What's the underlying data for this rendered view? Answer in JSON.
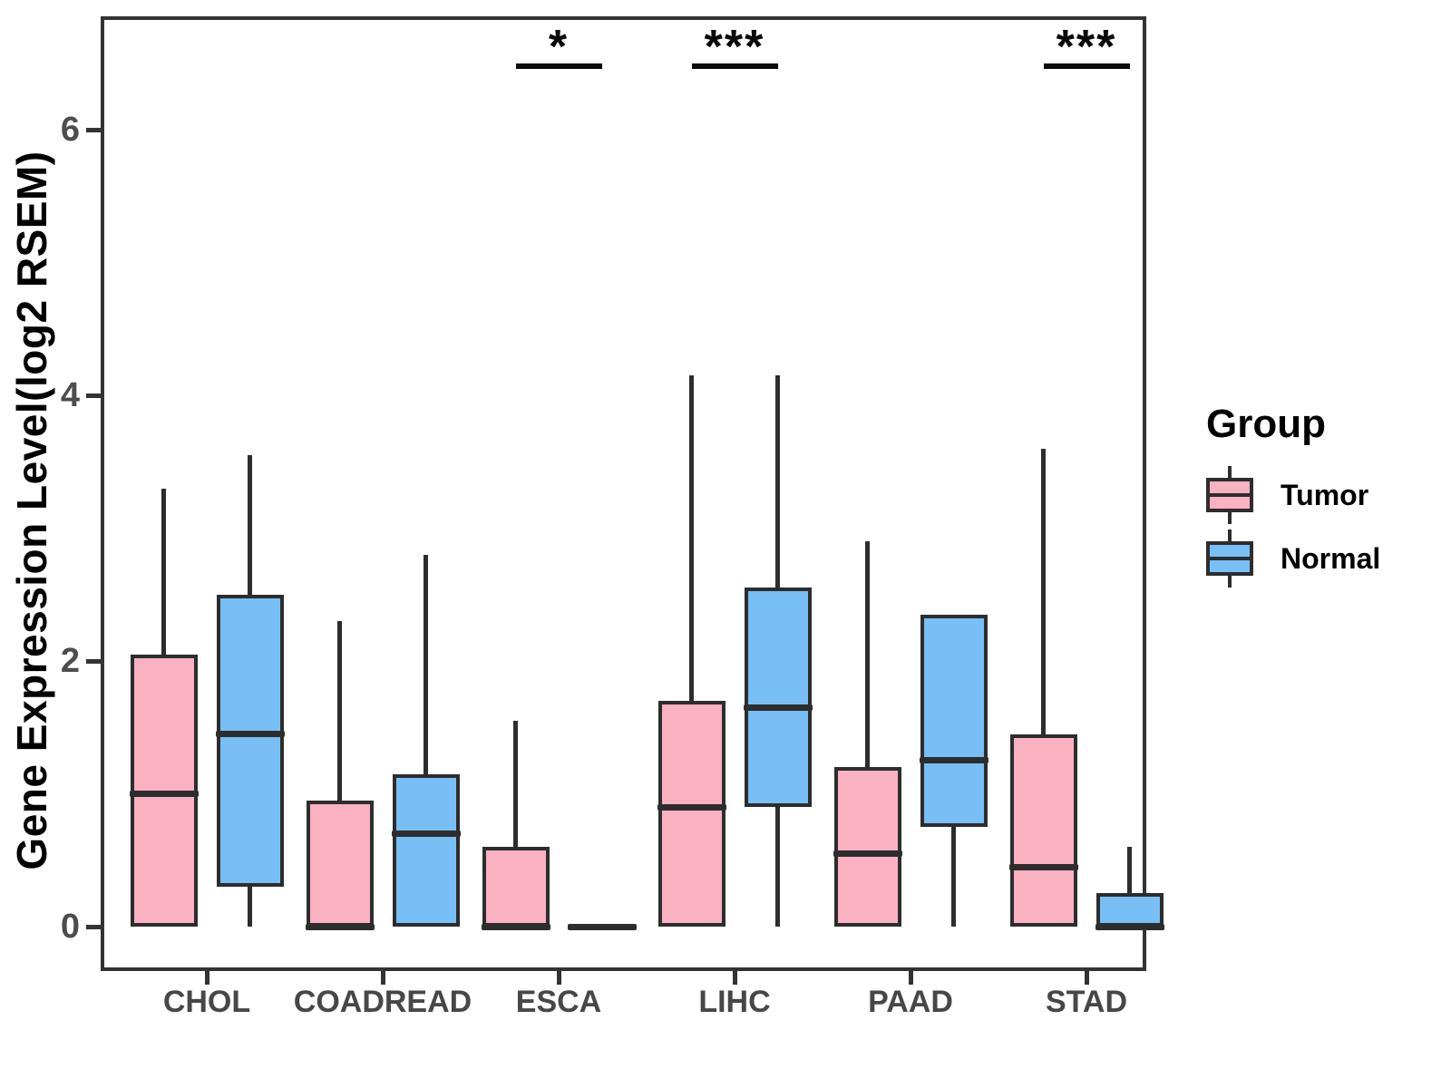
{
  "chart_data": {
    "type": "boxplot",
    "title": "",
    "ylabel": "Gene Expression Level(log2 RSEM)",
    "xlabel": "",
    "yticks": [
      0,
      2,
      4,
      6
    ],
    "ylim": [
      -0.3,
      6.85
    ],
    "grid": "off",
    "categories": [
      "CHOL",
      "COADREAD",
      "ESCA",
      "LIHC",
      "PAAD",
      "STAD"
    ],
    "groups": [
      {
        "name": "Tumor",
        "color": "#FAB1C1"
      },
      {
        "name": "Normal",
        "color": "#77BFF5"
      }
    ],
    "line_color": "#2d2d2d",
    "axis_text_color": "#4d4d4d",
    "series": [
      {
        "category": "CHOL",
        "tumor": {
          "low": 0,
          "q1": 0,
          "median": 1.0,
          "q3": 2.05,
          "high": 3.3
        },
        "normal": {
          "low": 0,
          "q1": 0.3,
          "median": 1.45,
          "q3": 2.5,
          "high": 3.55
        },
        "significance": ""
      },
      {
        "category": "COADREAD",
        "tumor": {
          "low": 0,
          "q1": 0,
          "median": 0,
          "q3": 0.95,
          "high": 2.3
        },
        "normal": {
          "low": 0,
          "q1": 0,
          "median": 0.7,
          "q3": 1.15,
          "high": 2.8
        },
        "significance": ""
      },
      {
        "category": "ESCA",
        "tumor": {
          "low": 0,
          "q1": 0,
          "median": 0,
          "q3": 0.6,
          "high": 1.55
        },
        "normal": {
          "low": 0,
          "q1": 0,
          "median": 0,
          "q3": 0,
          "high": 0
        },
        "significance": "*"
      },
      {
        "category": "LIHC",
        "tumor": {
          "low": 0,
          "q1": 0,
          "median": 0.9,
          "q3": 1.7,
          "high": 4.15
        },
        "normal": {
          "low": 0,
          "q1": 0.9,
          "median": 1.65,
          "q3": 2.55,
          "high": 4.15
        },
        "significance": "***"
      },
      {
        "category": "PAAD",
        "tumor": {
          "low": 0,
          "q1": 0,
          "median": 0.55,
          "q3": 1.2,
          "high": 2.9
        },
        "normal": {
          "low": 0,
          "q1": 0.75,
          "median": 1.25,
          "q3": 2.35,
          "high": 2.35
        },
        "significance": ""
      },
      {
        "category": "STAD",
        "tumor": {
          "low": 0,
          "q1": 0,
          "median": 0.45,
          "q3": 1.45,
          "high": 3.6
        },
        "normal": {
          "low": 0,
          "q1": 0,
          "median": 0,
          "q3": 0.25,
          "high": 0.6
        },
        "significance": "***"
      }
    ],
    "legend": {
      "title": "Group",
      "position": "right"
    }
  }
}
